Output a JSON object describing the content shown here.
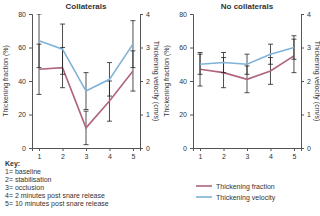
{
  "chart_data": [
    {
      "type": "line",
      "title": "Collaterals",
      "x": [
        1,
        2,
        3,
        4,
        5
      ],
      "xlim": [
        0.7,
        5.3
      ],
      "xticks": [
        1,
        2,
        3,
        4,
        5
      ],
      "ylabel": "Thickening fraction (%)",
      "ylim": [
        0,
        80
      ],
      "yticks": [
        0,
        20,
        40,
        60,
        80
      ],
      "y2label": "Thickening velocity (cm/s)",
      "y2lim": [
        0,
        4
      ],
      "y2ticks": [
        0,
        1,
        2,
        3,
        4
      ],
      "annotations": [
        "Key:",
        "1= baseline",
        "2= stabilisation",
        "3= occlusion",
        "4= 2 minutes post snare release",
        "5= 10 minutes post snare release"
      ],
      "series": [
        {
          "name": "Thickening fraction",
          "color": "#b0647e",
          "values": [
            47,
            48,
            12,
            28,
            46
          ],
          "errors": [
            15,
            12,
            10,
            12,
            12
          ]
        },
        {
          "name": "Thickening velocity",
          "color": "#7eb2d8",
          "axis": "y2",
          "values": [
            3.2,
            2.95,
            1.7,
            2.05,
            3.1
          ],
          "errors": [
            0.8,
            0.75,
            0.55,
            0.5,
            0.7
          ]
        }
      ]
    },
    {
      "type": "line",
      "title": "No collaterals",
      "x": [
        1,
        2,
        3,
        4,
        5
      ],
      "xlim": [
        0.7,
        5.3
      ],
      "xticks": [
        1,
        2,
        3,
        4,
        5
      ],
      "ylabel": "Thickening fraction (%)",
      "ylim": [
        0,
        80
      ],
      "yticks": [
        0,
        20,
        40,
        60,
        80
      ],
      "y2label": "Thickening velocity (cm/s)",
      "y2lim": [
        0,
        4
      ],
      "y2ticks": [
        0,
        1,
        2,
        3,
        4
      ],
      "legend": "lower right",
      "series": [
        {
          "name": "Thickening fraction",
          "color": "#b0647e",
          "values": [
            47,
            45,
            41,
            46,
            55
          ],
          "errors": [
            10,
            9,
            8,
            8,
            10
          ]
        },
        {
          "name": "Thickening velocity",
          "color": "#7eb2d8",
          "axis": "y2",
          "values": [
            2.5,
            2.55,
            2.5,
            2.8,
            3.0
          ],
          "errors": [
            0.3,
            0.3,
            0.3,
            0.3,
            0.35
          ]
        }
      ]
    }
  ]
}
